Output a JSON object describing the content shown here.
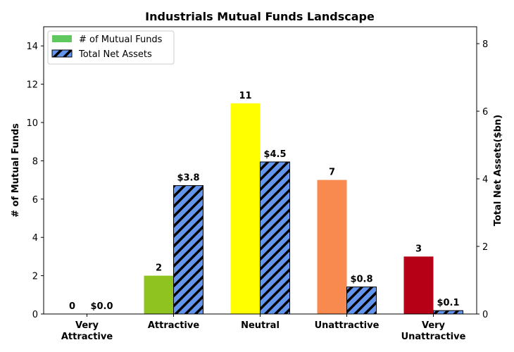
{
  "chart_data": {
    "type": "bar",
    "title": "Industrials Mutual Funds Landscape",
    "categories": [
      [
        "Very",
        "Attractive"
      ],
      [
        "Attractive"
      ],
      [
        "Neutral"
      ],
      [
        "Unattractive"
      ],
      [
        "Very",
        "Unattractive"
      ]
    ],
    "series": [
      {
        "name": "# of Mutual Funds",
        "axis": "left",
        "values": [
          0,
          2,
          11,
          7,
          3
        ],
        "labels": [
          "0",
          "2",
          "11",
          "7",
          "3"
        ],
        "colors": [
          "#8fc31f",
          "#8fc31f",
          "#ffff00",
          "#f98a4f",
          "#b50016"
        ],
        "legend_color": "#5fc95f"
      },
      {
        "name": "Total Net Assets",
        "axis": "right",
        "values": [
          0.0,
          3.8,
          4.5,
          0.8,
          0.1
        ],
        "labels": [
          "$0.0",
          "$3.8",
          "$4.5",
          "$0.8",
          "$0.1"
        ],
        "color": "#6495ed",
        "pattern": "hatched"
      }
    ],
    "ylabel_left": "# of Mutual Funds",
    "ylabel_right": "Total Net Assets($bn)",
    "ylim_left": [
      0,
      15
    ],
    "yticks_left": [
      0,
      2,
      4,
      6,
      8,
      10,
      12,
      14
    ],
    "ylim_right": [
      0,
      8.5
    ],
    "yticks_right": [
      0,
      2,
      4,
      6,
      8
    ],
    "legend_position": "top-left",
    "grid": false
  }
}
